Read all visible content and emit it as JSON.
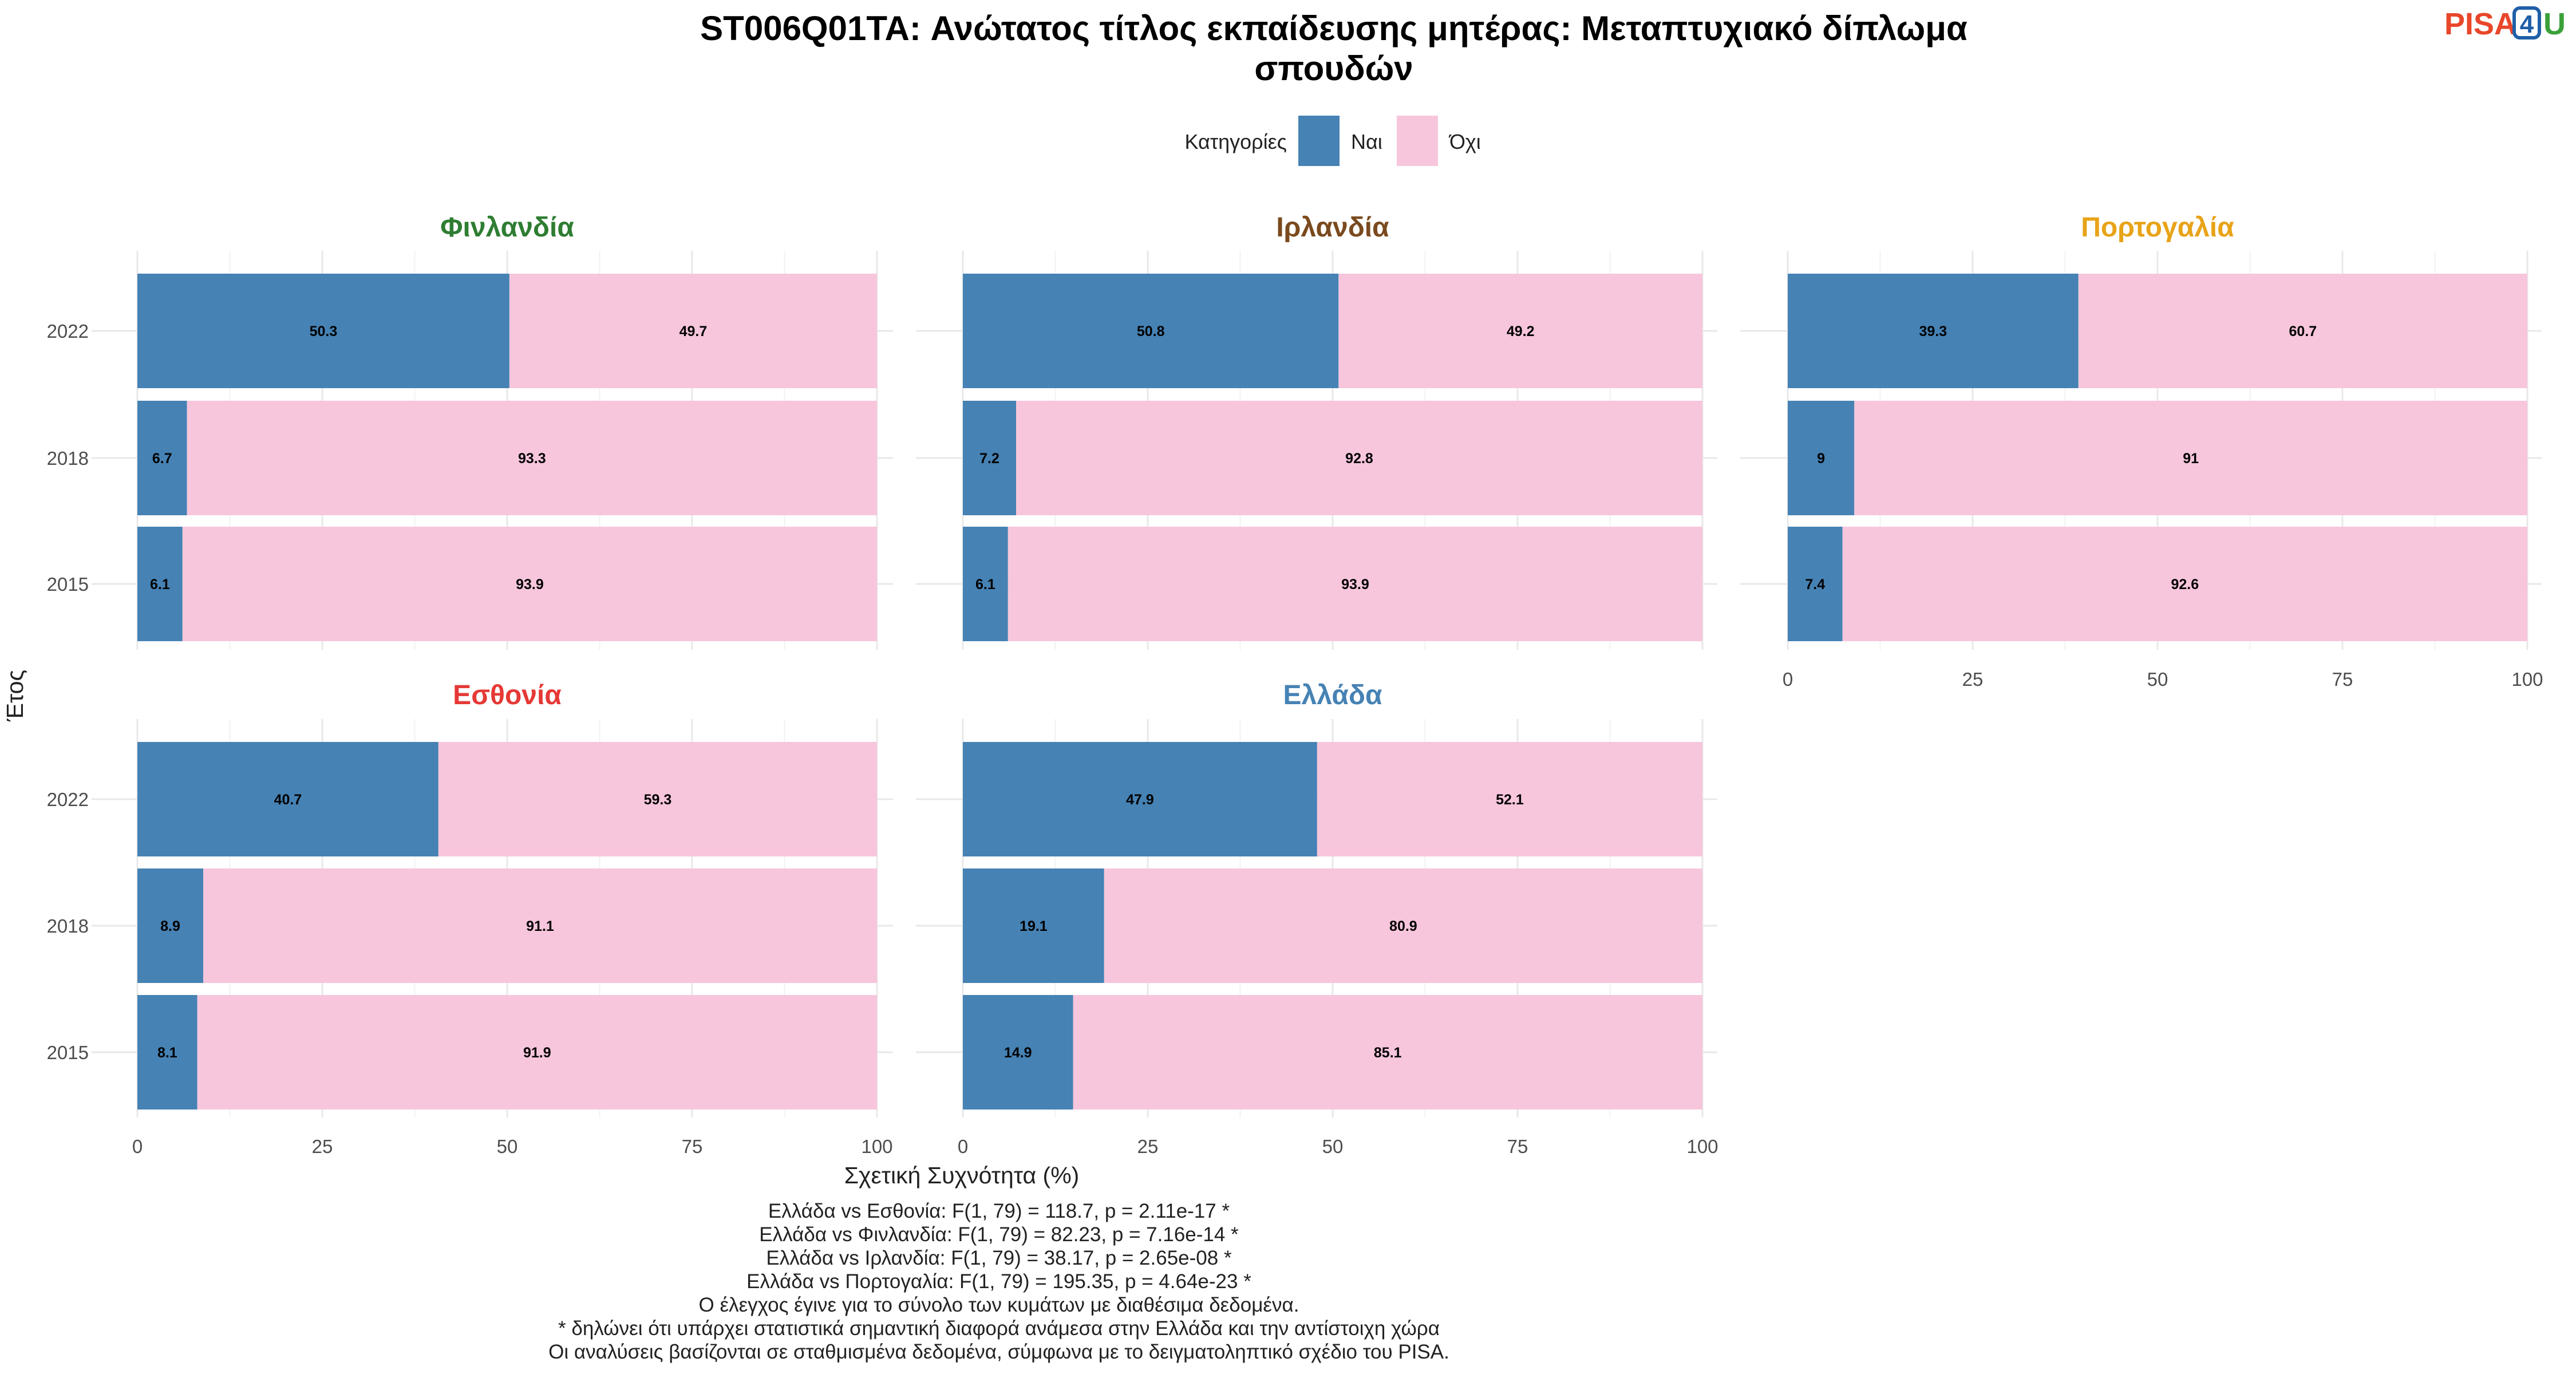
{
  "title_lines": [
    "ST006Q01TA: Ανώτατος τίτλος εκπαίδευσης μητέρας: Μεταπτυχιακό δίπλωμα",
    "σπουδών"
  ],
  "logo": {
    "text_main": "PISA",
    "text_digit": "4",
    "text_end": "U"
  },
  "legend": {
    "title": "Κατηγορίες",
    "items": [
      {
        "label": "Ναι",
        "color": "#4682b4"
      },
      {
        "label": "Όχι",
        "color": "#f7c6dc"
      }
    ]
  },
  "axes": {
    "x_title": "Σχετική Συχνότητα (%)",
    "y_title": "Έτος",
    "x_ticks": [
      "0",
      "25",
      "50",
      "75",
      "100"
    ]
  },
  "chart_data": {
    "type": "bar",
    "orientation": "horizontal",
    "stacked": true,
    "categories": [
      "2022",
      "2018",
      "2015"
    ],
    "xlim": [
      0,
      100
    ],
    "grid": true,
    "legend_position": "top",
    "panels": [
      {
        "name": "Φινλανδία",
        "color": "#2e7d32",
        "series": [
          {
            "name": "Ναι",
            "values": [
              50.3,
              6.7,
              6.1
            ]
          },
          {
            "name": "Όχι",
            "values": [
              49.7,
              93.3,
              93.9
            ]
          }
        ]
      },
      {
        "name": "Ιρλανδία",
        "color": "#7a4a1e",
        "series": [
          {
            "name": "Ναι",
            "values": [
              50.8,
              7.2,
              6.1
            ]
          },
          {
            "name": "Όχι",
            "values": [
              49.2,
              92.8,
              93.9
            ]
          }
        ]
      },
      {
        "name": "Πορτογαλία",
        "color": "#e8a317",
        "series": [
          {
            "name": "Ναι",
            "values": [
              39.3,
              9,
              7.4
            ]
          },
          {
            "name": "Όχι",
            "values": [
              60.7,
              91,
              92.6
            ]
          }
        ]
      },
      {
        "name": "Εσθονία",
        "color": "#e53935",
        "series": [
          {
            "name": "Ναι",
            "values": [
              40.7,
              8.9,
              8.1
            ]
          },
          {
            "name": "Όχι",
            "values": [
              59.3,
              91.1,
              91.9
            ]
          }
        ]
      },
      {
        "name": "Ελλάδα",
        "color": "#4682b4",
        "series": [
          {
            "name": "Ναι",
            "values": [
              47.9,
              19.1,
              14.9
            ]
          },
          {
            "name": "Όχι",
            "values": [
              52.1,
              80.9,
              85.1
            ]
          }
        ]
      }
    ]
  },
  "caption_lines": [
    "Ελλάδα vs Εσθονία: F(1, 79) = 118.7, p = 2.11e-17 *",
    "Ελλάδα vs Φινλανδία: F(1, 79) = 82.23, p = 7.16e-14 *",
    "Ελλάδα vs Ιρλανδία: F(1, 79) = 38.17, p = 2.65e-08 *",
    "Ελλάδα vs Πορτογαλία: F(1, 79) = 195.35, p = 4.64e-23 *",
    "Ο έλεγχος έγινε για το σύνολο των κυμάτων με διαθέσιμα δεδομένα.",
    "* δηλώνει ότι υπάρχει στατιστικά σημαντική διαφορά ανάμεσα στην Ελλάδα και την αντίστοιχη χώρα",
    "Οι αναλύσεις βασίζονται σε σταθμισμένα δεδομένα, σύμφωνα με το δειγματοληπτικό σχέδιο του PISA."
  ]
}
